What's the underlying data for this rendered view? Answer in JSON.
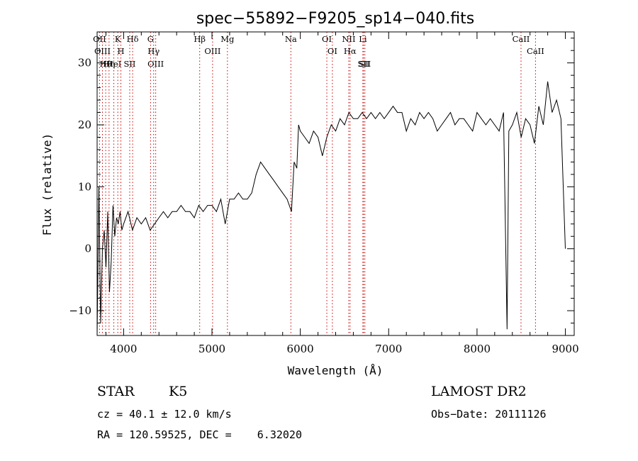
{
  "chart_data": {
    "type": "line",
    "title": "spec−55892−F9205_sp14−040.fits",
    "xlabel": "Wavelength (Å)",
    "ylabel": "Flux (relative)",
    "xlim": [
      3700,
      9100
    ],
    "ylim": [
      -14,
      35
    ],
    "xticks": [
      4000,
      5000,
      6000,
      7000,
      8000,
      9000
    ],
    "yticks": [
      -10,
      0,
      10,
      20,
      30
    ],
    "ytick_labels": [
      "−10",
      "0",
      "10",
      "20",
      "30"
    ],
    "grid": false,
    "series": [
      {
        "x": [
          3700,
          3720,
          3740,
          3760,
          3780,
          3800,
          3820,
          3840,
          3860,
          3880,
          3900,
          3920,
          3940,
          3960,
          3980,
          4000,
          4050,
          4100,
          4150,
          4200,
          4250,
          4300,
          4350,
          4400,
          4450,
          4500,
          4550,
          4600,
          4650,
          4700,
          4750,
          4800,
          4850,
          4900,
          4950,
          5000,
          5050,
          5100,
          5150,
          5200,
          5250,
          5300,
          5350,
          5400,
          5450,
          5500,
          5550,
          5600,
          5650,
          5700,
          5750,
          5800,
          5850,
          5900,
          5930,
          5960,
          5980,
          6000,
          6050,
          6100,
          6150,
          6200,
          6250,
          6300,
          6350,
          6400,
          6450,
          6500,
          6550,
          6600,
          6650,
          6700,
          6750,
          6800,
          6850,
          6900,
          6950,
          7000,
          7050,
          7100,
          7150,
          7200,
          7250,
          7300,
          7350,
          7400,
          7450,
          7500,
          7550,
          7600,
          7650,
          7700,
          7750,
          7800,
          7850,
          7900,
          7950,
          8000,
          8050,
          8100,
          8150,
          8200,
          8250,
          8300,
          8340,
          8360,
          8400,
          8450,
          8500,
          8550,
          8600,
          8650,
          8700,
          8750,
          8800,
          8850,
          8900,
          8950,
          9000
        ],
        "y": [
          -14,
          10,
          -12,
          0,
          3,
          -3,
          6,
          -7,
          -2,
          7,
          2,
          5,
          4,
          6,
          3,
          4,
          6,
          3,
          5,
          4,
          5,
          3,
          4,
          5,
          6,
          5,
          6,
          6,
          7,
          6,
          6,
          5,
          7,
          6,
          7,
          7,
          6,
          8,
          4,
          8,
          8,
          9,
          8,
          8,
          9,
          12,
          14,
          13,
          12,
          11,
          10,
          9,
          8,
          6,
          14,
          13,
          20,
          19,
          18,
          17,
          19,
          18,
          15,
          18,
          20,
          19,
          21,
          20,
          22,
          21,
          21,
          22,
          21,
          22,
          21,
          22,
          21,
          22,
          23,
          22,
          22,
          19,
          21,
          20,
          22,
          21,
          22,
          21,
          19,
          20,
          21,
          22,
          20,
          21,
          21,
          20,
          19,
          22,
          21,
          20,
          21,
          20,
          19,
          22,
          -13,
          19,
          20,
          22,
          18,
          21,
          20,
          17,
          23,
          20,
          27,
          22,
          24,
          21,
          0
        ]
      }
    ],
    "spectral_lines": [
      {
        "label": "Hθ",
        "x": 3797
      },
      {
        "label": "OII",
        "x": 3727
      },
      {
        "label": "OIII",
        "x": 3760
      },
      {
        "label": "K",
        "x": 3934
      },
      {
        "label": "H",
        "x": 3969
      },
      {
        "label": "Hη",
        "x": 3835
      },
      {
        "label": "HeI",
        "x": 3889
      },
      {
        "label": "SII",
        "x": 4069
      },
      {
        "label": "Hδ",
        "x": 4102
      },
      {
        "label": "OIII",
        "x": 4363
      },
      {
        "label": "Hγ",
        "x": 4340
      },
      {
        "label": "G",
        "x": 4305
      },
      {
        "label": "OIII",
        "x": 5007
      },
      {
        "label": "Hβ",
        "x": 4861
      },
      {
        "label": "Mg",
        "x": 5175
      },
      {
        "label": "Na",
        "x": 5893
      },
      {
        "label": "OI",
        "x": 6300
      },
      {
        "label": "OI",
        "x": 6363
      },
      {
        "label": "Hα",
        "x": 6563
      },
      {
        "label": "NII",
        "x": 6548
      },
      {
        "label": "Li",
        "x": 6708
      },
      {
        "label": "SII",
        "x": 6716
      },
      {
        "label": "SII",
        "x": 6731
      },
      {
        "label": "CaII",
        "x": 8498
      },
      {
        "label": "CaII",
        "x": 8662
      }
    ]
  },
  "info": {
    "class": "STAR",
    "subclass": "K5",
    "survey": "LAMOST DR2",
    "cz": "cz = 40.1 ± 12.0 km/s",
    "obs_date": "Obs−Date: 20111126",
    "radec": "RA = 120.59525, DEC =    6.32020"
  },
  "colors": {
    "line_marker": "#cc0000",
    "spectrum": "#000000"
  }
}
